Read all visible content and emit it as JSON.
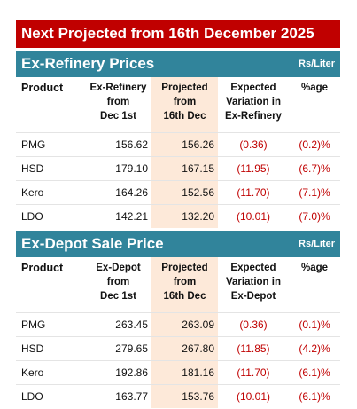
{
  "header": {
    "title": "Next Projected from 16th December 2025"
  },
  "sections": [
    {
      "title": "Ex-Refinery Prices",
      "unit": "Rs/Liter",
      "columns": [
        "Product",
        "Ex-Refinery\nfrom\nDec 1st",
        "Projected\nfrom\n16th Dec",
        "Expected\nVariation in\nEx-Refinery",
        "%age"
      ],
      "rows": [
        [
          "PMG",
          "156.62",
          "156.26",
          "(0.36)",
          "(0.2)%"
        ],
        [
          "HSD",
          "179.10",
          "167.15",
          "(11.95)",
          "(6.7)%"
        ],
        [
          "Kero",
          "164.26",
          "152.56",
          "(11.70)",
          "(7.1)%"
        ],
        [
          "LDO",
          "142.21",
          "132.20",
          "(10.01)",
          "(7.0)%"
        ]
      ]
    },
    {
      "title": "Ex-Depot Sale Price",
      "unit": "Rs/Liter",
      "columns": [
        "Product",
        "Ex-Depot\nfrom\nDec 1st",
        "Projected\nfrom\n16th Dec",
        "Expected\nVariation in\nEx-Depot",
        "%age"
      ],
      "rows": [
        [
          "PMG",
          "263.45",
          "263.09",
          "(0.36)",
          "(0.1)%"
        ],
        [
          "HSD",
          "279.65",
          "267.80",
          "(11.85)",
          "(4.2)%"
        ],
        [
          "Kero",
          "192.86",
          "181.16",
          "(11.70)",
          "(6.1)%"
        ],
        [
          "LDO",
          "163.77",
          "153.76",
          "(10.01)",
          "(6.1)%"
        ]
      ]
    }
  ]
}
